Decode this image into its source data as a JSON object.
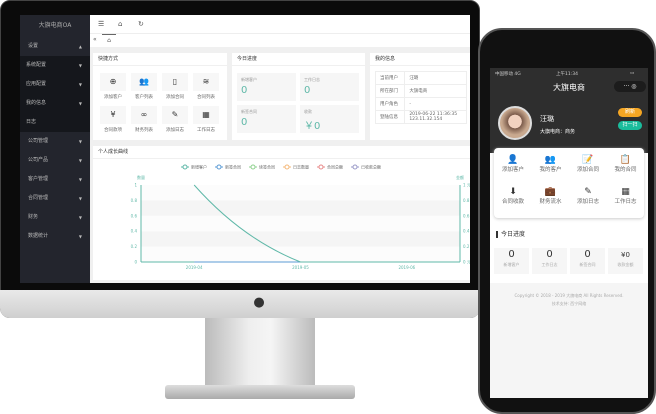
{
  "desktop": {
    "app_title": "大旗电商OA",
    "sidebar": [
      {
        "label": "设置",
        "expanded": true,
        "children": [
          {
            "label": "系统配置"
          },
          {
            "label": "应用配置"
          },
          {
            "label": "我的信息"
          },
          {
            "label": "日志"
          }
        ]
      },
      {
        "label": "公司管理"
      },
      {
        "label": "公司产品"
      },
      {
        "label": "客户管理"
      },
      {
        "label": "合同管理"
      },
      {
        "label": "财务"
      },
      {
        "label": "数据统计"
      }
    ],
    "topbar_icons": [
      "menu-icon",
      "home-icon",
      "refresh-icon"
    ],
    "quick": {
      "title": "快捷方式",
      "items": [
        {
          "label": "添加客户",
          "icon": "⊕"
        },
        {
          "label": "客户列表",
          "icon": "👥"
        },
        {
          "label": "添加合同",
          "icon": "▯"
        },
        {
          "label": "合同列表",
          "icon": "≋"
        },
        {
          "label": "合同款项",
          "icon": "¥"
        },
        {
          "label": "财务列表",
          "icon": "∞"
        },
        {
          "label": "添加日志",
          "icon": "✎"
        },
        {
          "label": "工作日志",
          "icon": "▦"
        }
      ]
    },
    "today": {
      "title": "今日进度",
      "stats": [
        {
          "label": "新增客户",
          "value": "0"
        },
        {
          "label": "工作日志",
          "value": "0"
        },
        {
          "label": "新签合同",
          "value": "0"
        },
        {
          "label": "收款",
          "value": "￥0"
        }
      ]
    },
    "info": {
      "title": "我的信息",
      "rows": [
        {
          "k": "当前用户",
          "v": "汪璐"
        },
        {
          "k": "所在部门",
          "v": "大旗电商"
        },
        {
          "k": "用户角色",
          "v": "-"
        },
        {
          "k": "登陆信息",
          "v": "2019-06-22 11:36:35",
          "v2": "123.11.32.154"
        }
      ]
    },
    "chart_card_title": "个人成长曲线"
  },
  "chart_data": {
    "type": "line",
    "categories": [
      "2019-04",
      "2019-05",
      "2019-06"
    ],
    "ylabel": "数量",
    "y2label": "金额",
    "ylim": [
      0,
      1
    ],
    "yticks": [
      "0",
      "0.2",
      "0.4",
      "0.6",
      "0.8",
      "1"
    ],
    "y2ticks": [
      "0 元",
      "0.2 元",
      "0.4 元",
      "0.6 元",
      "0.8 元",
      "1 元"
    ],
    "legend_position": "top",
    "series": [
      {
        "name": "新增客户",
        "color": "#5fb8a8",
        "values": [
          1,
          0,
          0
        ]
      },
      {
        "name": "新签合同",
        "color": "#5b9bd5",
        "values": [
          0,
          0,
          0
        ]
      },
      {
        "name": "续签合同",
        "color": "#8fd18f",
        "values": [
          0,
          0,
          0
        ]
      },
      {
        "name": "日志数量",
        "color": "#f5b97a",
        "values": [
          0,
          0,
          0
        ]
      },
      {
        "name": "合同总额",
        "color": "#e88a8a",
        "values": [
          0,
          0,
          0
        ]
      },
      {
        "name": "已收款总额",
        "color": "#9a9ac8",
        "values": [
          0,
          0,
          0
        ]
      }
    ]
  },
  "mobile": {
    "status": {
      "carrier": "中国移动  4G",
      "time": "上午11:34"
    },
    "title": "大旗电商",
    "user": {
      "name": "汪璐",
      "dept": "大旗电商：商务"
    },
    "buttons": {
      "refresh": "刷新",
      "scan": "扫一扫"
    },
    "grid": [
      {
        "label": "添加客户",
        "icon": "👤"
      },
      {
        "label": "我的客户",
        "icon": "👥"
      },
      {
        "label": "添加合同",
        "icon": "📝"
      },
      {
        "label": "我的合同",
        "icon": "📋"
      },
      {
        "label": "合同收款",
        "icon": "⬇"
      },
      {
        "label": "财务流水",
        "icon": "💼"
      },
      {
        "label": "添加日志",
        "icon": "✎"
      },
      {
        "label": "工作日志",
        "icon": "▦"
      }
    ],
    "today_title": "今日进度",
    "stats": [
      {
        "label": "新增客户",
        "value": "0"
      },
      {
        "label": "工作日志",
        "value": "0"
      },
      {
        "label": "新签合同",
        "value": "0"
      },
      {
        "label": "收款金额",
        "value": "¥0"
      }
    ],
    "footer1": "Copyright © 2018 - 2019 大旗电商 All Rights Reserved.",
    "footer2": "技术支持: 西宁网络",
    "accent_orange": "#f5a623",
    "accent_green": "#1abc9c"
  }
}
